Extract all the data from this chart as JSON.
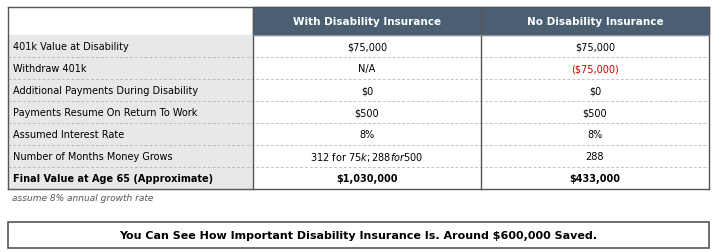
{
  "header_col1": "With Disability Insurance",
  "header_col2": "No Disability Insurance",
  "header_bg": "#4a5f72",
  "header_text_color": "#ffffff",
  "rows": [
    {
      "label": "401k Value at Disability",
      "col1": "$75,000",
      "col2": "$75,000",
      "col2_red": false,
      "bold": false
    },
    {
      "label": "Withdraw 401k",
      "col1": "N/A",
      "col2": "($75,000)",
      "col2_red": true,
      "bold": false
    },
    {
      "label": "Additional Payments During Disability",
      "col1": "$0",
      "col2": "$0",
      "col2_red": false,
      "bold": false
    },
    {
      "label": "Payments Resume On Return To Work",
      "col1": "$500",
      "col2": "$500",
      "col2_red": false,
      "bold": false
    },
    {
      "label": "Assumed Interest Rate",
      "col1": "8%",
      "col2": "8%",
      "col2_red": false,
      "bold": false
    },
    {
      "label": "Number of Months Money Grows",
      "col1": "312 for $75k; 288 for $500",
      "col2": "288",
      "col2_red": false,
      "bold": false
    },
    {
      "label": "Final Value at Age 65 (Approximate)",
      "col1": "$1,030,000",
      "col2": "$433,000",
      "col2_red": false,
      "bold": true
    }
  ],
  "footnote": "assume 8% annual growth rate",
  "banner": "You Can See How Important Disability Insurance Is. Around $600,000 Saved.",
  "label_bg": "#e8e8e8",
  "row_bg": "#ffffff",
  "divider_color": "#aaaaaa",
  "red_color": "#cc0000",
  "label_font_color": "#000000",
  "value_font_color": "#000000",
  "banner_bg": "#ffffff",
  "banner_border": "#555555",
  "border_color": "#555555"
}
